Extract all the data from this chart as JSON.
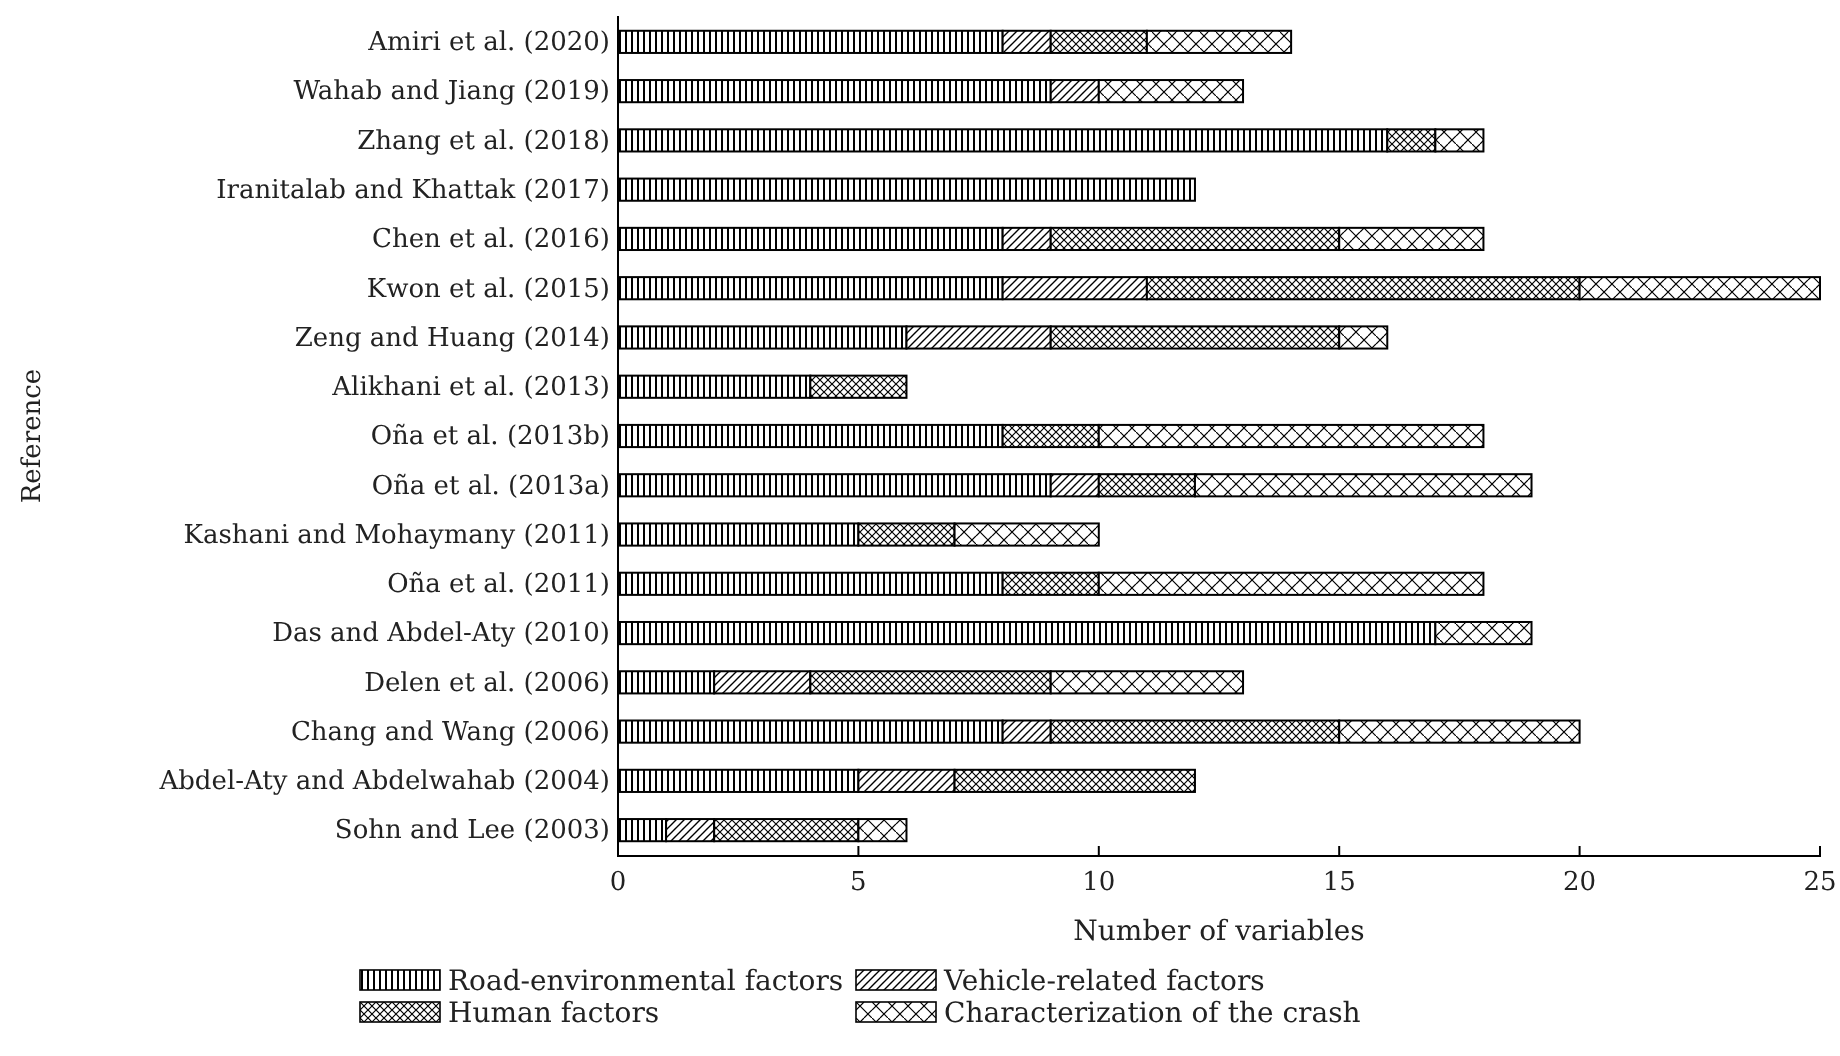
{
  "chart_data": {
    "type": "bar",
    "orientation": "horizontal",
    "stacked": true,
    "ylabel": "Reference",
    "xlabel": "Number of variables",
    "categories": [
      "Amiri et al. (2020)",
      "Wahab and Jiang (2019)",
      "Zhang et al. (2018)",
      "Iranitalab and Khattak (2017)",
      "Chen et al. (2016)",
      "Kwon et al. (2015)",
      "Zeng and Huang (2014)",
      "Alikhani et al. (2013)",
      "Oña et al. (2013b)",
      "Oña et al. (2013a)",
      "Kashani and Mohaymany (2011)",
      "Oña et al. (2011)",
      "Das and Abdel-Aty (2010)",
      "Delen et al. (2006)",
      "Chang and Wang (2006)",
      "Abdel-Aty and Abdelwahab (2004)",
      "Sohn and Lee (2003)"
    ],
    "series": [
      {
        "name": "Road-environmental factors",
        "color": "#000000",
        "values": [
          8,
          9,
          16,
          12,
          8,
          8,
          6,
          4,
          8,
          9,
          5,
          8,
          17,
          2,
          8,
          5,
          1
        ]
      },
      {
        "name": "Vehicle-related factors",
        "color": "#000000",
        "values": [
          1,
          1,
          0,
          0,
          1,
          3,
          3,
          0,
          0,
          1,
          0,
          0,
          0,
          2,
          1,
          2,
          1
        ]
      },
      {
        "name": "Human factors",
        "color": "#000000",
        "values": [
          2,
          0,
          1,
          0,
          6,
          9,
          6,
          2,
          2,
          2,
          2,
          2,
          0,
          5,
          6,
          5,
          3
        ]
      },
      {
        "name": "Characterization of the crash",
        "color": "#000000",
        "values": [
          3,
          3,
          1,
          0,
          3,
          5,
          1,
          0,
          8,
          7,
          3,
          8,
          2,
          4,
          5,
          0,
          1
        ]
      }
    ],
    "xlim": [
      0,
      25
    ],
    "xticks": [
      0,
      5,
      10,
      15,
      20,
      25
    ],
    "grid": false,
    "legend": "bottom"
  }
}
